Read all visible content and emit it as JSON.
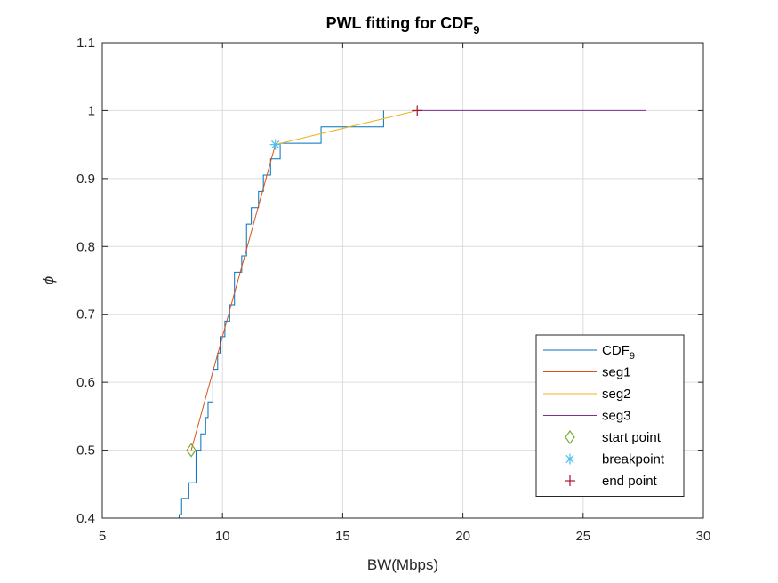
{
  "chart_data": {
    "type": "line",
    "title": "PWL fitting for CDF",
    "title_subscript": "9",
    "xlabel": "BW(Mbps)",
    "ylabel": "ϕ",
    "xlim": [
      5,
      30
    ],
    "ylim": [
      0.4,
      1.1
    ],
    "xticks": [
      5,
      10,
      15,
      20,
      25,
      30
    ],
    "yticks": [
      0.4,
      0.5,
      0.6,
      0.7,
      0.8,
      0.9,
      1,
      1.1
    ],
    "grid": true,
    "legend_position": "bottom-right",
    "series": [
      {
        "name": "CDF",
        "name_subscript": "9",
        "style": "step",
        "color": "#0072BD",
        "x": [
          8.2,
          8.3,
          8.6,
          8.9,
          9.1,
          9.3,
          9.4,
          9.6,
          9.8,
          9.9,
          10.1,
          10.3,
          10.5,
          10.8,
          11.0,
          11.2,
          11.5,
          11.7,
          12.0,
          12.4,
          12.6,
          14.1,
          16.7,
          16.7
        ],
        "y": [
          0.405,
          0.429,
          0.452,
          0.5,
          0.524,
          0.548,
          0.571,
          0.619,
          0.643,
          0.667,
          0.69,
          0.714,
          0.762,
          0.786,
          0.833,
          0.857,
          0.881,
          0.905,
          0.929,
          0.952,
          0.952,
          0.976,
          0.976,
          1.0
        ]
      },
      {
        "name": "seg1",
        "style": "line",
        "color": "#D95319",
        "x": [
          8.7,
          12.2
        ],
        "y": [
          0.5,
          0.95
        ]
      },
      {
        "name": "seg2",
        "style": "line",
        "color": "#EDB120",
        "x": [
          12.2,
          18.1
        ],
        "y": [
          0.95,
          1.0
        ]
      },
      {
        "name": "seg3",
        "style": "line",
        "color": "#7E2F8E",
        "x": [
          18.1,
          27.6
        ],
        "y": [
          1.0,
          1.0
        ]
      },
      {
        "name": "start point",
        "style": "marker",
        "marker": "diamond",
        "color": "#77AC30",
        "x": [
          8.7
        ],
        "y": [
          0.5
        ]
      },
      {
        "name": "breakpoint",
        "style": "marker",
        "marker": "asterisk",
        "color": "#4DBEEE",
        "x": [
          12.2
        ],
        "y": [
          0.95
        ]
      },
      {
        "name": "end point",
        "style": "marker",
        "marker": "plus",
        "color": "#A2142F",
        "x": [
          18.1
        ],
        "y": [
          1.0
        ]
      }
    ]
  }
}
